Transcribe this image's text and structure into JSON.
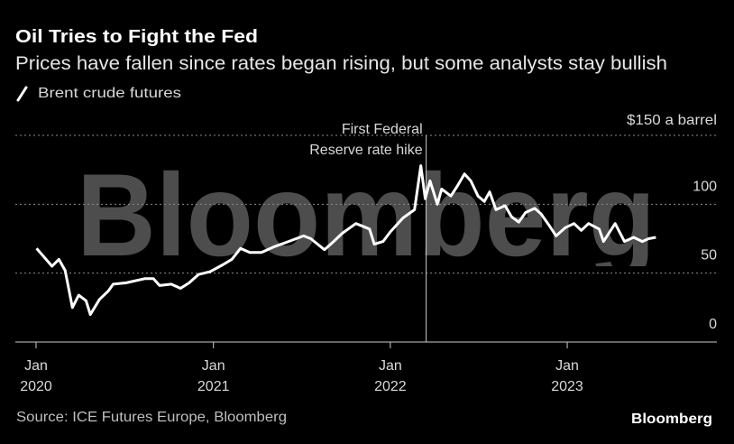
{
  "title": "Oil Tries to Fight the Fed",
  "subtitle": "Prices have fallen since rates began rising, but some analysts stay bullish",
  "source": "Source: ICE Futures Europe, Bloomberg",
  "logo": "Bloomberg",
  "watermark": "Bloomberg",
  "colors": {
    "background": "#000000",
    "line": "#ffffff",
    "grid": "#8c8c8c",
    "watermark": "#4d4d4d",
    "text": "#d9d9d9"
  },
  "chart_data": {
    "type": "line",
    "title": "Oil Tries to Fight the Fed",
    "xlabel": "",
    "ylabel": "",
    "y_unit_label": "$150 a barrel",
    "ylim": [
      0,
      150
    ],
    "yticks": [
      0,
      50,
      100,
      150
    ],
    "ytick_labels": [
      "0",
      "50",
      "100",
      "$150"
    ],
    "xticks": [
      {
        "date": "2020-01-01",
        "month": "Jan",
        "year": "2020"
      },
      {
        "date": "2021-01-01",
        "month": "Jan",
        "year": "2021"
      },
      {
        "date": "2022-01-01",
        "month": "Jan",
        "year": "2022"
      },
      {
        "date": "2023-01-01",
        "month": "Jan",
        "year": "2023"
      }
    ],
    "grid": true,
    "legend_placement": "top-left",
    "annotation": {
      "date": "2022-03-16",
      "label_line1": "First Federal",
      "label_line2": "Reserve rate hike"
    },
    "series": [
      {
        "name": "Brent crude futures",
        "points": [
          [
            "2020-01-02",
            68
          ],
          [
            "2020-02-03",
            55
          ],
          [
            "2020-02-17",
            60
          ],
          [
            "2020-03-01",
            52
          ],
          [
            "2020-03-16",
            25
          ],
          [
            "2020-03-29",
            34
          ],
          [
            "2020-04-13",
            30
          ],
          [
            "2020-04-22",
            20
          ],
          [
            "2020-05-11",
            31
          ],
          [
            "2020-05-29",
            37
          ],
          [
            "2020-06-08",
            42
          ],
          [
            "2020-07-05",
            43
          ],
          [
            "2020-08-12",
            46
          ],
          [
            "2020-08-30",
            46
          ],
          [
            "2020-09-12",
            41
          ],
          [
            "2020-10-06",
            42
          ],
          [
            "2020-10-25",
            39
          ],
          [
            "2020-11-12",
            43
          ],
          [
            "2020-12-01",
            49
          ],
          [
            "2020-12-25",
            51
          ],
          [
            "2021-01-20",
            56
          ],
          [
            "2021-02-08",
            60
          ],
          [
            "2021-02-26",
            68
          ],
          [
            "2021-03-17",
            65
          ],
          [
            "2021-04-10",
            65
          ],
          [
            "2021-05-05",
            69
          ],
          [
            "2021-06-05",
            73
          ],
          [
            "2021-07-06",
            77
          ],
          [
            "2021-07-21",
            75
          ],
          [
            "2021-08-18",
            67
          ],
          [
            "2021-09-06",
            73
          ],
          [
            "2021-09-24",
            79
          ],
          [
            "2021-10-22",
            86
          ],
          [
            "2021-11-19",
            82
          ],
          [
            "2021-11-29",
            71
          ],
          [
            "2021-12-17",
            73
          ],
          [
            "2022-01-01",
            80
          ],
          [
            "2022-01-27",
            90
          ],
          [
            "2022-02-20",
            96
          ],
          [
            "2022-03-05",
            128
          ],
          [
            "2022-03-14",
            104
          ],
          [
            "2022-03-24",
            117
          ],
          [
            "2022-04-08",
            100
          ],
          [
            "2022-04-17",
            111
          ],
          [
            "2022-05-06",
            106
          ],
          [
            "2022-05-19",
            113
          ],
          [
            "2022-06-03",
            122
          ],
          [
            "2022-06-16",
            117
          ],
          [
            "2022-07-01",
            106
          ],
          [
            "2022-07-14",
            102
          ],
          [
            "2022-07-25",
            109
          ],
          [
            "2022-08-07",
            96
          ],
          [
            "2022-08-26",
            99
          ],
          [
            "2022-09-08",
            91
          ],
          [
            "2022-09-23",
            87
          ],
          [
            "2022-10-07",
            94
          ],
          [
            "2022-10-26",
            97
          ],
          [
            "2022-11-08",
            93
          ],
          [
            "2022-11-26",
            84
          ],
          [
            "2022-12-09",
            77
          ],
          [
            "2022-12-28",
            83
          ],
          [
            "2023-01-15",
            86
          ],
          [
            "2023-01-30",
            81
          ],
          [
            "2023-02-14",
            86
          ],
          [
            "2023-03-08",
            82
          ],
          [
            "2023-03-17",
            73
          ],
          [
            "2023-04-10",
            86
          ],
          [
            "2023-04-29",
            73
          ],
          [
            "2023-05-18",
            76
          ],
          [
            "2023-06-05",
            73
          ],
          [
            "2023-06-18",
            75
          ],
          [
            "2023-07-03",
            76
          ]
        ]
      }
    ]
  }
}
